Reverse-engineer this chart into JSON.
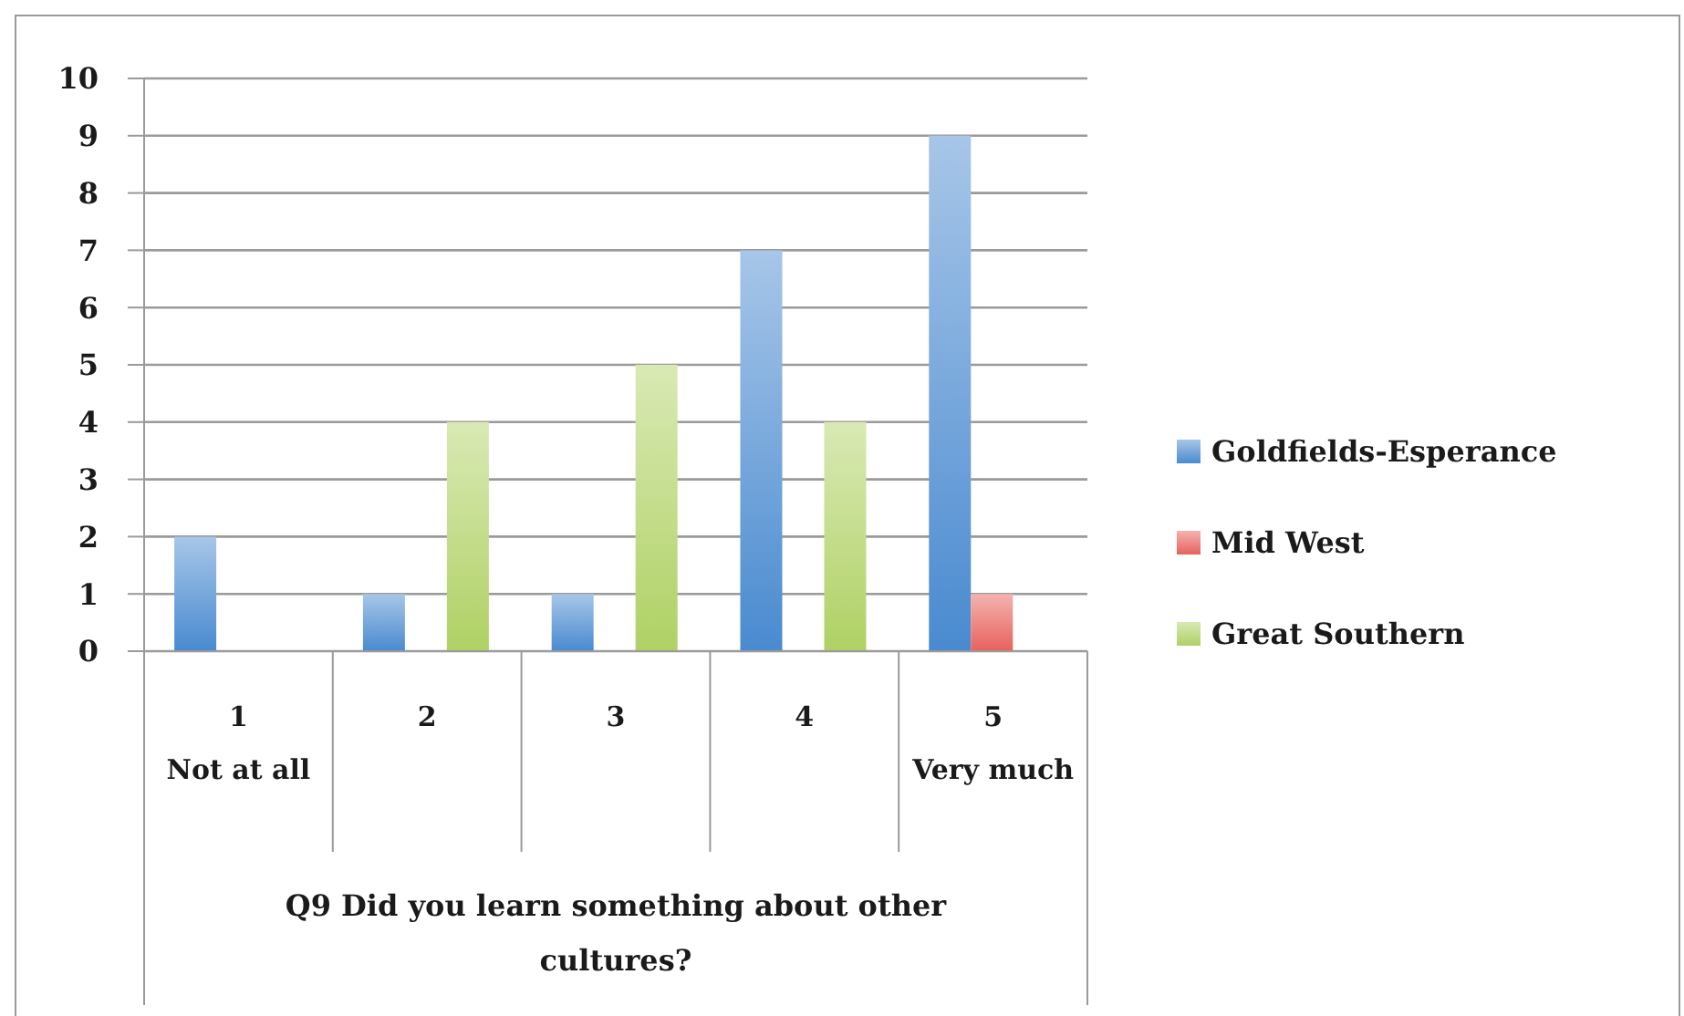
{
  "chart_data": {
    "type": "bar",
    "xlabel": "Q9 Did you learn something about other cultures?",
    "categories": [
      "1\nNot at all",
      "2",
      "3",
      "4",
      "5\nVery much"
    ],
    "series": [
      {
        "name": "Goldfields-Esperance",
        "color": "#78a8dc",
        "values": [
          2,
          1,
          1,
          7,
          9
        ]
      },
      {
        "name": "Mid West",
        "color": "#ee8a86",
        "values": [
          0,
          0,
          0,
          0,
          1
        ]
      },
      {
        "name": "Great Southern",
        "color": "#c4dd8c",
        "values": [
          0,
          4,
          5,
          4,
          0
        ]
      }
    ],
    "ylim": [
      0,
      10
    ],
    "yticks": [
      0,
      1,
      2,
      3,
      4,
      5,
      6,
      7,
      8,
      9,
      10
    ],
    "grid": "y",
    "legend": "right"
  }
}
